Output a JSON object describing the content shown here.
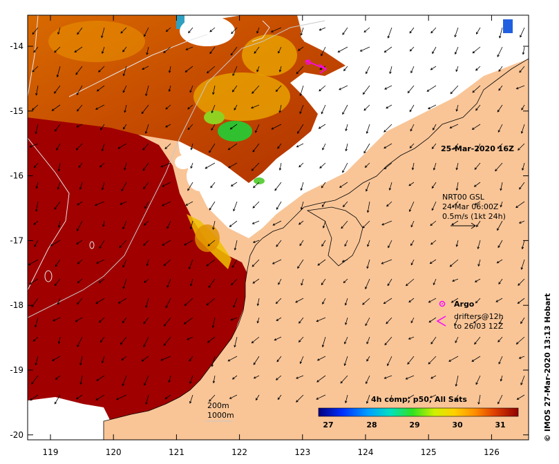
{
  "map": {
    "timestamp": "25-Mar-2020 16Z",
    "current_info": [
      "NRT00 GSL",
      "24-Mar 06:00Z",
      "0.5m/s (1kt 24h)"
    ],
    "legend": {
      "argo_label": "Argo",
      "drifters_label_1": "drifters@12h",
      "drifters_label_2": "to 26/03 12Z",
      "argo_color": "#ff00ff",
      "drifter_color": "#ff00ff"
    },
    "contours": [
      "200m",
      "1000m"
    ],
    "credit": "© IMOS 27-Mar-2020 13:13 Hobart",
    "colorbar": {
      "title": "4h comp, p50, All Sats",
      "ticks": [
        "27",
        "28",
        "29",
        "30",
        "31"
      ]
    },
    "x_ticks": [
      "119",
      "120",
      "121",
      "122",
      "123",
      "124",
      "125",
      "126"
    ],
    "y_ticks": [
      "-14",
      "-15",
      "-16",
      "-17",
      "-18",
      "-19",
      "-20"
    ],
    "colors": {
      "land": "#f9c597",
      "sst_hot": "#a00000",
      "sst_warm": "#d06000",
      "sst_mid": "#e8a000",
      "sst_cool": "#30c030",
      "cloud": "#ffffff"
    }
  }
}
